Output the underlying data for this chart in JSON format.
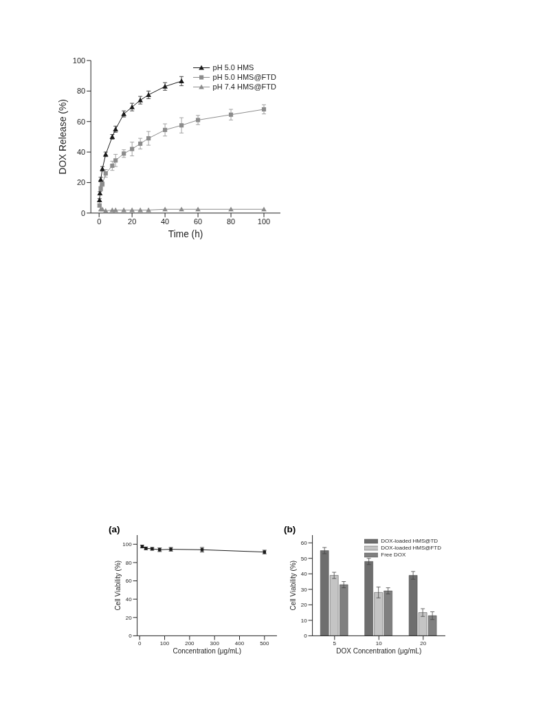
{
  "chart_data": [
    {
      "type": "line",
      "xlabel": "Time (h)",
      "ylabel": "DOX Release (%)",
      "xlim": [
        -5,
        110
      ],
      "xticks": [
        0,
        20,
        40,
        60,
        80,
        100
      ],
      "ylim": [
        0,
        100
      ],
      "yticks": [
        0,
        20,
        40,
        60,
        80,
        100
      ],
      "grid": false,
      "legend": "top right",
      "line_style": "solid",
      "series": [
        {
          "name": "pH 5.0 HMS",
          "color": "#1a1a1a",
          "marker": "triangle",
          "x": [
            0.25,
            0.5,
            1,
            2,
            4,
            8,
            10,
            15,
            20,
            25,
            30,
            40,
            50
          ],
          "values": [
            8.5,
            13,
            22,
            29,
            38.5,
            50,
            55,
            65,
            69.5,
            74,
            77.5,
            83,
            86.5
          ],
          "errors": [
            1,
            1,
            1.5,
            1.5,
            1.5,
            1.5,
            2,
            2,
            2.5,
            2.5,
            2.5,
            2.5,
            3
          ]
        },
        {
          "name": "pH 5.0 HMS@FTD",
          "color": "#8c8c8c",
          "marker": "square",
          "x": [
            0.25,
            1,
            2,
            4,
            8,
            10,
            15,
            20,
            25,
            30,
            40,
            50,
            60,
            80,
            100
          ],
          "values": [
            5,
            16,
            19,
            26,
            31,
            34.5,
            39,
            42,
            45.5,
            49,
            54.5,
            57.5,
            61,
            64.5,
            68
          ],
          "errors": [
            1,
            1.5,
            1.5,
            2.5,
            3,
            4,
            2.5,
            4.5,
            3.5,
            4.5,
            4,
            5,
            3,
            3.5,
            3
          ]
        },
        {
          "name": "pH 7.4 HMS@FTD",
          "color": "#8c8c8c",
          "marker": "triangle",
          "x": [
            1,
            2,
            4,
            8,
            10,
            15,
            20,
            25,
            30,
            40,
            50,
            60,
            80,
            100
          ],
          "values": [
            2.5,
            2.5,
            1.5,
            2,
            2,
            2,
            2,
            2,
            2,
            2.5,
            2.5,
            2.5,
            2.5,
            2.5
          ]
        }
      ]
    },
    {
      "type": "line",
      "title": "(a)",
      "xlabel": "Concentration (μg/mL)",
      "ylabel": "Cell Viability (%)",
      "xlim": [
        -10,
        550
      ],
      "xticks": [
        0,
        100,
        200,
        300,
        400,
        500
      ],
      "ylim": [
        0,
        110
      ],
      "yticks": [
        0,
        20,
        40,
        60,
        80,
        100
      ],
      "grid": false,
      "legend": false,
      "line_style": "solid",
      "series": [
        {
          "color": "#1a1a1a",
          "marker": "square",
          "x": [
            10,
            25,
            50,
            80,
            125,
            250,
            500
          ],
          "values": [
            97.5,
            95.5,
            95,
            94,
            94.5,
            94,
            91.5
          ],
          "errors": [
            1.5,
            1.5,
            1.5,
            2,
            2,
            2.5,
            2
          ]
        }
      ]
    },
    {
      "type": "bar",
      "title": "(b)",
      "xlabel": "DOX Concentration (μg/mL)",
      "ylabel": "Cell Viability (%)",
      "categories": [
        "5",
        "10",
        "20"
      ],
      "ylim": [
        0,
        65
      ],
      "yticks": [
        0,
        10,
        20,
        30,
        40,
        50,
        60
      ],
      "grid": false,
      "legend": "top right",
      "series": [
        {
          "name": "DOX-loaded HMS@TD",
          "color": "#6e6e6e",
          "values": [
            55,
            48,
            39
          ],
          "errors": [
            2,
            2,
            2.5
          ]
        },
        {
          "name": "DOX-loaded HMS@FTD",
          "color": "#c4c4c4",
          "values": [
            39,
            28,
            15
          ],
          "errors": [
            2,
            3.5,
            2.5
          ]
        },
        {
          "name": "Free DOX",
          "color": "#808080",
          "values": [
            33,
            29,
            13
          ],
          "errors": [
            2,
            2,
            2.5
          ]
        }
      ]
    }
  ]
}
